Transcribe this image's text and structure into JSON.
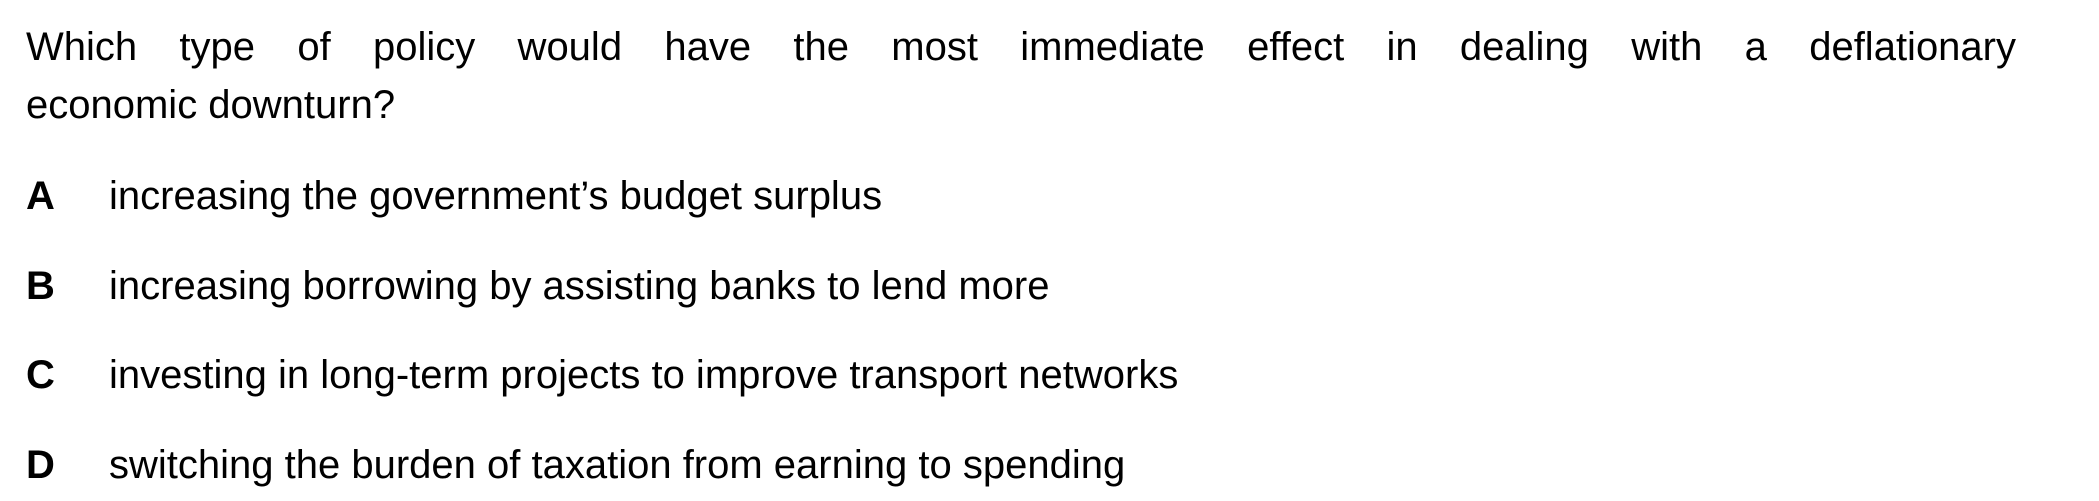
{
  "question": {
    "line1": "Which type of policy would have the most immediate effect in dealing with a deflationary",
    "line2": "economic downturn?"
  },
  "options": [
    {
      "letter": "A",
      "text": "increasing the government’s budget surplus"
    },
    {
      "letter": "B",
      "text": "increasing borrowing by assisting banks to lend more"
    },
    {
      "letter": "C",
      "text": "investing in long-term projects to improve transport networks"
    },
    {
      "letter": "D",
      "text": "switching the burden of taxation from earning to spending"
    }
  ]
}
